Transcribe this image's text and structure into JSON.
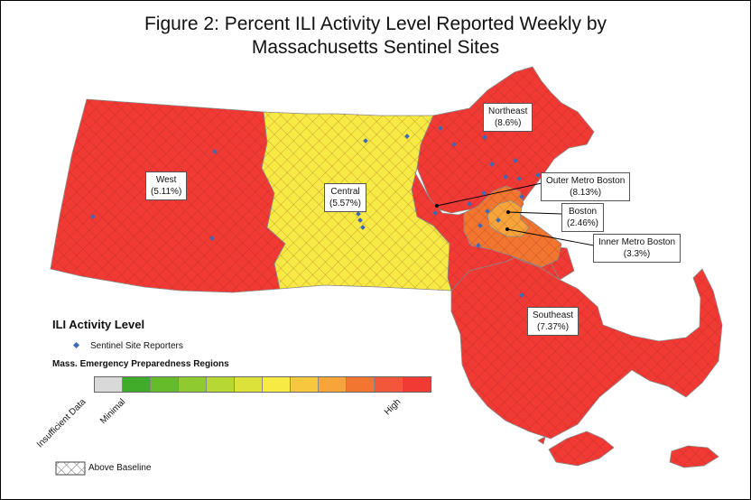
{
  "figure": {
    "title_line1": "Figure 2: Percent ILI Activity Level Reported Weekly by",
    "title_line2": "Massachusetts Sentinel Sites"
  },
  "colors": {
    "high": "#f23a35",
    "moderate_yellow": "#f7ea45",
    "orange_light": "#f7a53b",
    "orange_dark": "#f2762f",
    "site_marker": "#3a6bb5"
  },
  "regions": [
    {
      "name": "West",
      "value": "(5.11%)",
      "level": "high"
    },
    {
      "name": "Central",
      "value": "(5.57%)",
      "level": "moderate_yellow"
    },
    {
      "name": "Northeast",
      "value": "(8.6%)",
      "level": "high"
    },
    {
      "name": "Outer Metro Boston",
      "value": "(8.13%)",
      "level": "high"
    },
    {
      "name": "Boston",
      "value": "(2.46%)",
      "level": "orange_light"
    },
    {
      "name": "Inner Metro Boston",
      "value": "(3.3%)",
      "level": "orange_dark"
    },
    {
      "name": "Southeast",
      "value": "(7.37%)",
      "level": "high"
    }
  ],
  "legend": {
    "title": "ILI Activity Level",
    "sites_label": "Sentinel Site Reporters",
    "regions_label": "Mass. Emergency Preparedness Regions",
    "scale_colors": [
      "#d9d9d9",
      "#41ab2a",
      "#66bb2a",
      "#8fca2e",
      "#b7d733",
      "#dde23b",
      "#f7ea45",
      "#f7c73d",
      "#f7a53b",
      "#f2762f",
      "#f2573a",
      "#f23a35"
    ],
    "tick_labels": {
      "insufficient": "Insufficient Data",
      "minimal": "Minimal",
      "high": "High"
    },
    "baseline_label": "Above Baseline"
  }
}
